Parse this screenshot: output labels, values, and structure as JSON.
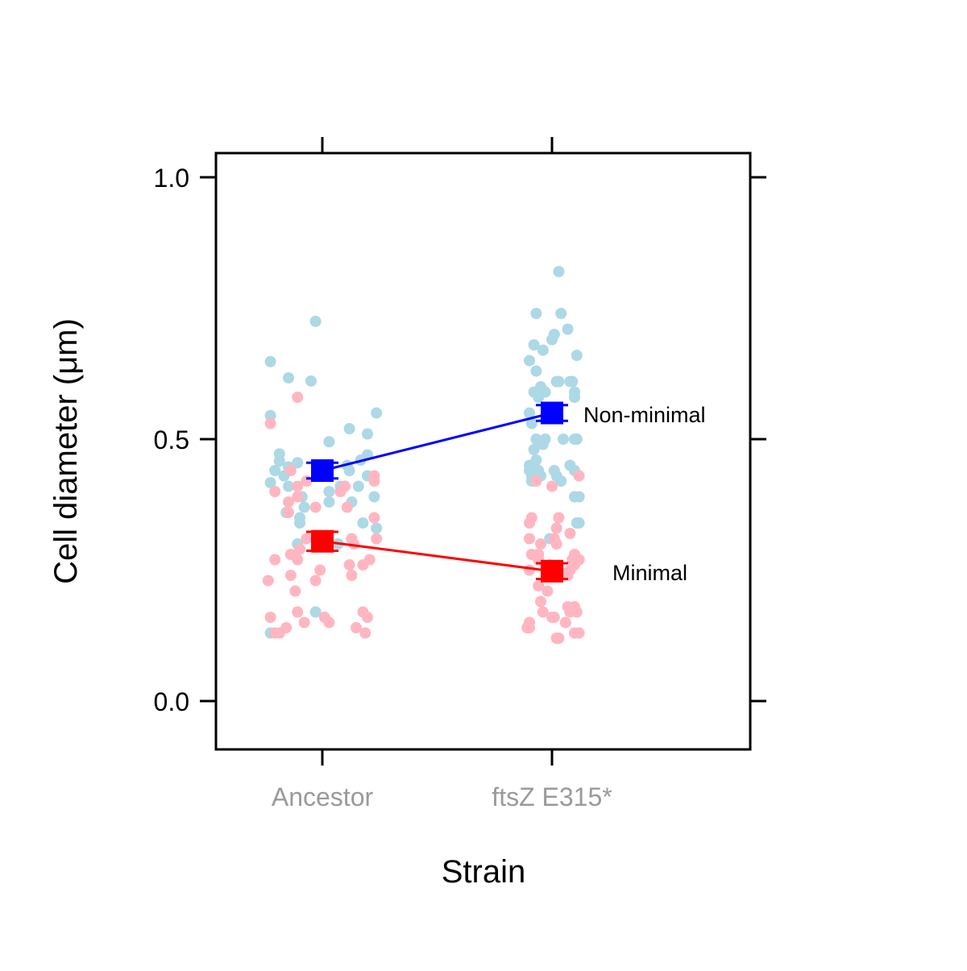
{
  "chart_data": {
    "type": "scatter",
    "xlabel": "Strain",
    "ylabel": "Cell diameter (μm)",
    "categories": [
      "Ancestor",
      "ftsZ E315*"
    ],
    "ylim": [
      -0.09,
      1.04
    ],
    "yticks": [
      0.0,
      0.5,
      1.0
    ],
    "ytick_labels": [
      "0.0",
      "0.5",
      "1.0"
    ],
    "grid": false,
    "legend": "direct labels at right of each series line",
    "series": [
      {
        "name": "Non-minimal",
        "point_color": "#add8e6",
        "line_color": "#0000ff",
        "means": [
          0.44,
          0.55
        ],
        "errors": [
          0.015,
          0.015
        ],
        "points": [
          [
            [
              -0.23,
              0.648
            ],
            [
              -0.23,
              0.545
            ],
            [
              -0.23,
              0.417
            ],
            [
              -0.19,
              0.472
            ],
            [
              -0.21,
              0.44
            ],
            [
              -0.19,
              0.458
            ],
            [
              -0.17,
              0.43
            ],
            [
              -0.15,
              0.447
            ],
            [
              -0.15,
              0.41
            ],
            [
              -0.16,
              0.36
            ],
            [
              -0.15,
              0.617
            ],
            [
              -0.11,
              0.455
            ],
            [
              -0.1,
              0.34
            ],
            [
              -0.09,
              0.39
            ],
            [
              -0.1,
              0.35
            ],
            [
              -0.08,
              0.37
            ],
            [
              -0.05,
              0.611
            ],
            [
              -0.03,
              0.725
            ],
            [
              -0.02,
              0.43
            ],
            [
              -0.03,
              0.17
            ],
            [
              -0.23,
              0.13
            ],
            [
              0.03,
              0.495
            ],
            [
              0.03,
              0.4
            ],
            [
              0.03,
              0.38
            ],
            [
              0.08,
              0.41
            ],
            [
              0.11,
              0.45
            ],
            [
              0.12,
              0.52
            ],
            [
              0.13,
              0.38
            ],
            [
              0.16,
              0.41
            ],
            [
              0.17,
              0.46
            ],
            [
              0.2,
              0.47
            ],
            [
              0.2,
              0.43
            ],
            [
              0.18,
              0.34
            ],
            [
              0.2,
              0.51
            ],
            [
              0.23,
              0.39
            ],
            [
              0.24,
              0.55
            ],
            [
              0.24,
              0.33
            ],
            [
              0.12,
              0.44
            ],
            [
              -0.11,
              0.3
            ],
            [
              0.07,
              0.3
            ]
          ],
          [
            [
              -0.1,
              0.65
            ],
            [
              -0.07,
              0.63
            ],
            [
              -0.08,
              0.68
            ],
            [
              -0.07,
              0.74
            ],
            [
              -0.05,
              0.6
            ],
            [
              -0.04,
              0.67
            ],
            [
              0.0,
              0.69
            ],
            [
              0.01,
              0.7
            ],
            [
              0.04,
              0.74
            ],
            [
              0.03,
              0.82
            ],
            [
              0.07,
              0.71
            ],
            [
              0.11,
              0.66
            ],
            [
              -0.08,
              0.59
            ],
            [
              -0.06,
              0.58
            ],
            [
              -0.03,
              0.59
            ],
            [
              0.03,
              0.61
            ],
            [
              0.02,
              0.61
            ],
            [
              0.08,
              0.61
            ],
            [
              0.09,
              0.61
            ],
            [
              0.1,
              0.58
            ],
            [
              0.1,
              0.59
            ],
            [
              -0.1,
              0.55
            ],
            [
              -0.09,
              0.53
            ],
            [
              -0.07,
              0.5
            ],
            [
              -0.08,
              0.48
            ],
            [
              -0.04,
              0.49
            ],
            [
              -0.03,
              0.5
            ],
            [
              0.05,
              0.5
            ],
            [
              0.1,
              0.5
            ],
            [
              0.11,
              0.5
            ],
            [
              -0.1,
              0.44
            ],
            [
              -0.09,
              0.43
            ],
            [
              -0.1,
              0.45
            ],
            [
              -0.09,
              0.42
            ],
            [
              -0.06,
              0.44
            ],
            [
              -0.07,
              0.46
            ],
            [
              0.01,
              0.44
            ],
            [
              0.02,
              0.43
            ],
            [
              0.08,
              0.45
            ],
            [
              0.1,
              0.44
            ],
            [
              0.1,
              0.39
            ],
            [
              0.12,
              0.39
            ],
            [
              0.11,
              0.34
            ],
            [
              0.12,
              0.34
            ],
            [
              -0.05,
              0.43
            ],
            [
              -0.01,
              0.31
            ],
            [
              0.04,
              0.42
            ]
          ]
        ]
      },
      {
        "name": "Minimal",
        "point_color": "#ffb6c1",
        "line_color": "#ff0000",
        "means": [
          0.305,
          0.248
        ],
        "errors": [
          0.018,
          0.015
        ],
        "points": [
          [
            [
              -0.23,
              0.53
            ],
            [
              -0.21,
              0.4
            ],
            [
              -0.15,
              0.38
            ],
            [
              -0.15,
              0.36
            ],
            [
              -0.11,
              0.58
            ],
            [
              -0.11,
              0.39
            ],
            [
              -0.14,
              0.28
            ],
            [
              -0.1,
              0.29
            ],
            [
              -0.11,
              0.27
            ],
            [
              -0.14,
              0.24
            ],
            [
              -0.12,
              0.21
            ],
            [
              -0.24,
              0.23
            ],
            [
              -0.21,
              0.27
            ],
            [
              -0.14,
              0.44
            ],
            [
              -0.11,
              0.41
            ],
            [
              -0.07,
              0.42
            ],
            [
              -0.03,
              0.37
            ],
            [
              0.02,
              0.43
            ],
            [
              0.08,
              0.4
            ],
            [
              0.1,
              0.41
            ],
            [
              0.11,
              0.37
            ],
            [
              0.13,
              0.31
            ],
            [
              0.14,
              0.3
            ],
            [
              0.12,
              0.26
            ],
            [
              0.13,
              0.24
            ],
            [
              0.18,
              0.26
            ],
            [
              0.21,
              0.27
            ],
            [
              0.23,
              0.42
            ],
            [
              0.23,
              0.43
            ],
            [
              0.23,
              0.35
            ],
            [
              0.24,
              0.31
            ],
            [
              -0.07,
              0.31
            ],
            [
              -0.03,
              0.23
            ],
            [
              -0.01,
              0.25
            ],
            [
              0.01,
              0.16
            ],
            [
              0.03,
              0.15
            ],
            [
              0.15,
              0.14
            ],
            [
              0.18,
              0.17
            ],
            [
              0.2,
              0.16
            ],
            [
              0.19,
              0.13
            ],
            [
              -0.23,
              0.16
            ],
            [
              -0.19,
              0.13
            ],
            [
              -0.16,
              0.14
            ],
            [
              -0.11,
              0.17
            ],
            [
              -0.08,
              0.15
            ],
            [
              -0.21,
              0.13
            ]
          ],
          [
            [
              -0.1,
              0.34
            ],
            [
              -0.09,
              0.35
            ],
            [
              -0.1,
              0.31
            ],
            [
              -0.09,
              0.28
            ],
            [
              -0.1,
              0.25
            ],
            [
              -0.06,
              0.27
            ],
            [
              -0.06,
              0.28
            ],
            [
              -0.05,
              0.3
            ],
            [
              0.01,
              0.31
            ],
            [
              0.02,
              0.33
            ],
            [
              0.03,
              0.35
            ],
            [
              0.02,
              0.3
            ],
            [
              -0.01,
              0.26
            ],
            [
              0.03,
              0.25
            ],
            [
              0.07,
              0.24
            ],
            [
              0.08,
              0.25
            ],
            [
              0.09,
              0.27
            ],
            [
              0.1,
              0.28
            ],
            [
              0.1,
              0.26
            ],
            [
              0.11,
              0.27
            ],
            [
              0.12,
              0.27
            ],
            [
              0.12,
              0.43
            ],
            [
              0.0,
              0.41
            ],
            [
              -0.07,
              0.42
            ],
            [
              -0.02,
              0.21
            ],
            [
              -0.05,
              0.19
            ],
            [
              -0.04,
              0.17
            ],
            [
              0.0,
              0.16
            ],
            [
              0.01,
              0.16
            ],
            [
              0.07,
              0.18
            ],
            [
              0.08,
              0.17
            ],
            [
              0.11,
              0.17
            ],
            [
              0.1,
              0.18
            ],
            [
              -0.11,
              0.14
            ],
            [
              -0.1,
              0.14
            ],
            [
              -0.1,
              0.15
            ],
            [
              0.03,
              0.12
            ],
            [
              0.02,
              0.12
            ],
            [
              0.1,
              0.13
            ],
            [
              0.12,
              0.13
            ],
            [
              0.06,
              0.15
            ],
            [
              -0.06,
              0.22
            ],
            [
              0.08,
              0.32
            ]
          ]
        ]
      }
    ]
  }
}
